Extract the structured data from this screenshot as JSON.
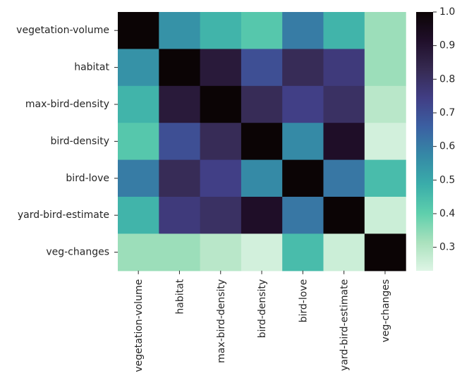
{
  "chart_data": {
    "type": "heatmap",
    "title": "",
    "xlabel": "",
    "ylabel": "",
    "x_labels": [
      "vegetation-volume",
      "habitat",
      "max-bird-density",
      "bird-density",
      "bird-love",
      "yard-bird-estimate",
      "veg-changes"
    ],
    "y_labels": [
      "vegetation-volume",
      "habitat",
      "max-bird-density",
      "bird-density",
      "bird-love",
      "yard-bird-estimate",
      "veg-changes"
    ],
    "values": [
      [
        1.0,
        0.55,
        0.47,
        0.42,
        0.6,
        0.47,
        0.33
      ],
      [
        0.55,
        1.0,
        0.88,
        0.7,
        0.82,
        0.76,
        0.33
      ],
      [
        0.47,
        0.88,
        1.0,
        0.82,
        0.74,
        0.8,
        0.29
      ],
      [
        0.42,
        0.7,
        0.82,
        1.0,
        0.57,
        0.92,
        0.25
      ],
      [
        0.6,
        0.82,
        0.74,
        0.57,
        1.0,
        0.61,
        0.45
      ],
      [
        0.47,
        0.76,
        0.8,
        0.92,
        0.61,
        1.0,
        0.26
      ],
      [
        0.33,
        0.33,
        0.29,
        0.25,
        0.45,
        0.26,
        1.0
      ]
    ],
    "colorbar": {
      "min": 0.23,
      "max": 1.0,
      "ticks": [
        "0.3",
        "0.4",
        "0.5",
        "0.6",
        "0.7",
        "0.8",
        "0.9",
        "1.0"
      ],
      "colormap": "mako_r",
      "colormap_stops": [
        "#def5e5",
        "#a9e1bd",
        "#5ecfac",
        "#3aadaa",
        "#3589a6",
        "#3b60a2",
        "#413e85",
        "#362a52",
        "#200f2a",
        "#0b0405"
      ]
    },
    "legend": "colorbar-right"
  }
}
